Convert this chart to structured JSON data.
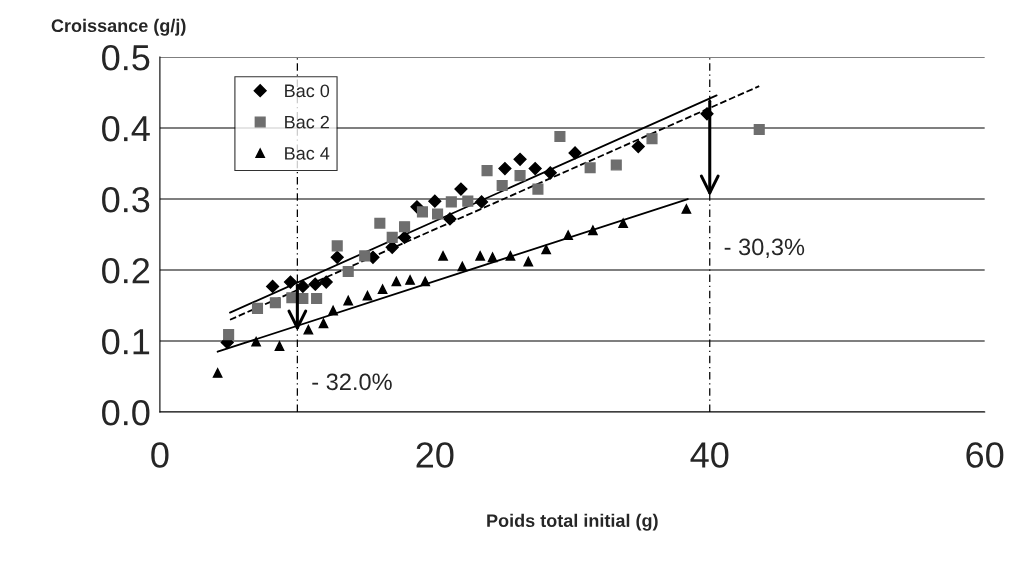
{
  "chart_data": {
    "type": "scatter",
    "xlabel": "Poids total initial (g)",
    "ylabel": "Croissance (g/j)",
    "xlim": [
      0,
      60
    ],
    "xticks": [
      0,
      20,
      40,
      60
    ],
    "ylim": [
      0,
      0.5
    ],
    "yticks": [
      {
        "value": 0,
        "label": "0.0"
      },
      0.1,
      0.2,
      0.3,
      0.4,
      0.5
    ],
    "grid": "y",
    "legend": "top left",
    "series": [
      {
        "name": "Bac 0",
        "color": "#000000",
        "marker": "diamond",
        "x": [
          4.9,
          8.2,
          9.5,
          10.4,
          11.3,
          12.1,
          12.9,
          15.5,
          16.9,
          17.8,
          18.7,
          20.0,
          21.1,
          21.9,
          23.4,
          25.1,
          26.2,
          27.3,
          28.4,
          30.2,
          34.8,
          39.8
        ],
        "values": [
          0.098,
          0.177,
          0.183,
          0.177,
          0.18,
          0.183,
          0.218,
          0.218,
          0.232,
          0.246,
          0.289,
          0.297,
          0.272,
          0.314,
          0.296,
          0.343,
          0.356,
          0.343,
          0.337,
          0.365,
          0.374,
          0.42
        ]
      },
      {
        "name": "Bac 2",
        "color": "#6e6e6e",
        "marker": "square",
        "x": [
          5.0,
          7.1,
          8.4,
          9.6,
          10.4,
          11.4,
          12.9,
          13.7,
          14.9,
          16.0,
          16.9,
          17.8,
          19.1,
          20.2,
          21.2,
          22.4,
          23.8,
          24.9,
          26.2,
          27.5,
          29.1,
          31.3,
          33.2,
          35.8,
          43.6
        ],
        "values": [
          0.109,
          0.146,
          0.154,
          0.161,
          0.16,
          0.16,
          0.234,
          0.198,
          0.22,
          0.266,
          0.246,
          0.261,
          0.282,
          0.279,
          0.296,
          0.297,
          0.34,
          0.319,
          0.333,
          0.314,
          0.388,
          0.344,
          0.348,
          0.385,
          0.398
        ]
      },
      {
        "name": "Bac 4",
        "color": "#000000",
        "marker": "triangle",
        "x": [
          4.2,
          7.0,
          8.7,
          10.8,
          11.9,
          12.6,
          13.7,
          15.1,
          16.2,
          17.2,
          18.2,
          19.3,
          20.6,
          22.0,
          23.3,
          24.2,
          25.5,
          26.8,
          28.1,
          29.7,
          31.5,
          33.7,
          38.3
        ],
        "values": [
          0.055,
          0.099,
          0.093,
          0.116,
          0.125,
          0.143,
          0.157,
          0.164,
          0.173,
          0.184,
          0.186,
          0.184,
          0.22,
          0.205,
          0.22,
          0.218,
          0.22,
          0.212,
          0.229,
          0.249,
          0.256,
          0.266,
          0.286
        ]
      },
      {
        "type": "line",
        "color": "#000000",
        "line_style": "solid",
        "x": [
          5.1,
          40.5
        ],
        "values": [
          0.14,
          0.446
        ]
      },
      {
        "type": "line",
        "color": "#000000",
        "line_style": "dashed",
        "x": [
          5.1,
          43.6
        ],
        "values": [
          0.13,
          0.459
        ]
      },
      {
        "type": "line",
        "color": "#000000",
        "line_style": "solid",
        "x": [
          4.2,
          38.4
        ],
        "values": [
          0.085,
          0.3
        ]
      }
    ],
    "ref_lines": [
      {
        "axis": "x",
        "value": 10,
        "line_style": "dotted",
        "color": "#000000"
      },
      {
        "axis": "x",
        "value": 40,
        "line_style": "dotted",
        "color": "#000000"
      }
    ],
    "annotations": [
      {
        "text": "- 32.0%",
        "x": 10,
        "y": 0.11
      },
      {
        "text": "- 30,3%",
        "x": 40,
        "y": 0.3
      }
    ]
  }
}
